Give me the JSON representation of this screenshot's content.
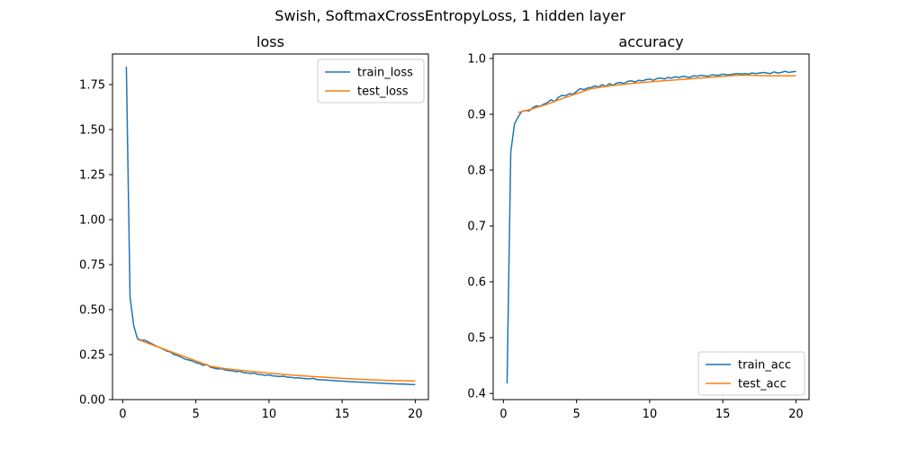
{
  "figure": {
    "suptitle": "Swish, SoftmaxCrossEntropyLoss, 1 hidden layer"
  },
  "chart_data": [
    {
      "type": "line",
      "title": "loss",
      "xlabel": "",
      "ylabel": "",
      "xlim": [
        -0.7,
        20.9
      ],
      "ylim": [
        0.0,
        1.92
      ],
      "xticks": [
        0,
        5,
        10,
        15,
        20
      ],
      "yticks": [
        0.0,
        0.25,
        0.5,
        0.75,
        1.0,
        1.25,
        1.5,
        1.75
      ],
      "ytick_labels": [
        "0.00",
        "0.25",
        "0.50",
        "0.75",
        "1.00",
        "1.25",
        "1.50",
        "1.75"
      ],
      "legend": "top-right",
      "grid": false,
      "series": [
        {
          "name": "train_loss",
          "color": "#1f77b4",
          "x": [
            0.25,
            0.5,
            0.75,
            1.0,
            1.25,
            1.5,
            1.75,
            2.0,
            2.25,
            2.5,
            2.75,
            3.0,
            3.25,
            3.5,
            3.75,
            4.0,
            4.25,
            4.5,
            4.75,
            5.0,
            5.25,
            5.5,
            5.75,
            6.0,
            6.25,
            6.5,
            6.75,
            7.0,
            7.25,
            7.5,
            7.75,
            8.0,
            8.25,
            8.5,
            8.75,
            9.0,
            9.25,
            9.5,
            9.75,
            10.0,
            10.25,
            10.5,
            10.75,
            11.0,
            11.25,
            11.5,
            11.75,
            12.0,
            12.25,
            12.5,
            12.75,
            13.0,
            13.25,
            13.5,
            13.75,
            14.0,
            14.25,
            14.5,
            14.75,
            15.0,
            15.25,
            15.5,
            15.75,
            16.0,
            16.25,
            16.5,
            16.75,
            17.0,
            17.25,
            17.5,
            17.75,
            18.0,
            18.25,
            18.5,
            18.75,
            19.0,
            19.25,
            19.5,
            19.75,
            20.0
          ],
          "y": [
            1.85,
            0.57,
            0.41,
            0.34,
            0.33,
            0.33,
            0.32,
            0.31,
            0.3,
            0.29,
            0.28,
            0.27,
            0.265,
            0.25,
            0.245,
            0.235,
            0.225,
            0.22,
            0.215,
            0.205,
            0.2,
            0.19,
            0.195,
            0.18,
            0.175,
            0.17,
            0.172,
            0.165,
            0.162,
            0.16,
            0.155,
            0.158,
            0.15,
            0.148,
            0.145,
            0.147,
            0.14,
            0.138,
            0.135,
            0.137,
            0.132,
            0.13,
            0.128,
            0.13,
            0.125,
            0.124,
            0.12,
            0.122,
            0.118,
            0.117,
            0.115,
            0.118,
            0.112,
            0.11,
            0.11,
            0.108,
            0.106,
            0.105,
            0.104,
            0.103,
            0.101,
            0.1,
            0.099,
            0.098,
            0.097,
            0.096,
            0.095,
            0.094,
            0.093,
            0.092,
            0.091,
            0.09,
            0.089,
            0.088,
            0.087,
            0.086,
            0.086,
            0.085,
            0.084,
            0.083
          ]
        },
        {
          "name": "test_loss",
          "color": "#ff7f0e",
          "x": [
            1,
            2,
            3,
            4,
            5,
            6,
            7,
            8,
            9,
            10,
            11,
            12,
            13,
            14,
            15,
            16,
            17,
            18,
            19,
            20
          ],
          "y": [
            0.335,
            0.305,
            0.275,
            0.245,
            0.215,
            0.185,
            0.172,
            0.163,
            0.155,
            0.147,
            0.14,
            0.134,
            0.128,
            0.123,
            0.118,
            0.114,
            0.11,
            0.107,
            0.105,
            0.104
          ]
        }
      ]
    },
    {
      "type": "line",
      "title": "accuracy",
      "xlabel": "",
      "ylabel": "",
      "xlim": [
        -0.7,
        20.9
      ],
      "ylim": [
        0.389,
        1.008
      ],
      "xticks": [
        0,
        5,
        10,
        15,
        20
      ],
      "yticks": [
        0.4,
        0.5,
        0.6,
        0.7,
        0.8,
        0.9,
        1.0
      ],
      "ytick_labels": [
        "0.4",
        "0.5",
        "0.6",
        "0.7",
        "0.8",
        "0.9",
        "1.0"
      ],
      "legend": "bottom-right",
      "grid": false,
      "series": [
        {
          "name": "train_acc",
          "color": "#1f77b4",
          "x": [
            0.25,
            0.5,
            0.75,
            1.0,
            1.25,
            1.5,
            1.75,
            2.0,
            2.25,
            2.5,
            2.75,
            3.0,
            3.25,
            3.5,
            3.75,
            4.0,
            4.25,
            4.5,
            4.75,
            5.0,
            5.25,
            5.5,
            5.75,
            6.0,
            6.25,
            6.5,
            6.75,
            7.0,
            7.25,
            7.5,
            7.75,
            8.0,
            8.25,
            8.5,
            8.75,
            9.0,
            9.25,
            9.5,
            9.75,
            10.0,
            10.25,
            10.5,
            10.75,
            11.0,
            11.25,
            11.5,
            11.75,
            12.0,
            12.25,
            12.5,
            12.75,
            13.0,
            13.25,
            13.5,
            13.75,
            14.0,
            14.25,
            14.5,
            14.75,
            15.0,
            15.25,
            15.5,
            15.75,
            16.0,
            16.25,
            16.5,
            16.75,
            17.0,
            17.25,
            17.5,
            17.75,
            18.0,
            18.25,
            18.5,
            18.75,
            19.0,
            19.25,
            19.5,
            19.75,
            20.0
          ],
          "y": [
            0.418,
            0.832,
            0.882,
            0.895,
            0.905,
            0.907,
            0.906,
            0.912,
            0.915,
            0.914,
            0.918,
            0.921,
            0.926,
            0.923,
            0.93,
            0.934,
            0.933,
            0.937,
            0.936,
            0.941,
            0.946,
            0.944,
            0.947,
            0.948,
            0.951,
            0.949,
            0.953,
            0.95,
            0.955,
            0.952,
            0.956,
            0.957,
            0.955,
            0.959,
            0.96,
            0.958,
            0.961,
            0.96,
            0.962,
            0.963,
            0.961,
            0.964,
            0.965,
            0.963,
            0.966,
            0.965,
            0.967,
            0.966,
            0.968,
            0.967,
            0.966,
            0.969,
            0.968,
            0.97,
            0.969,
            0.968,
            0.971,
            0.97,
            0.97,
            0.972,
            0.971,
            0.971,
            0.972,
            0.973,
            0.972,
            0.973,
            0.972,
            0.974,
            0.973,
            0.974,
            0.975,
            0.974,
            0.973,
            0.976,
            0.974,
            0.975,
            0.977,
            0.975,
            0.976,
            0.977
          ]
        },
        {
          "name": "test_acc",
          "color": "#ff7f0e",
          "x": [
            1,
            2,
            3,
            4,
            5,
            6,
            7,
            8,
            9,
            10,
            11,
            12,
            13,
            14,
            15,
            16,
            17,
            18,
            19,
            20
          ],
          "y": [
            0.903,
            0.91,
            0.918,
            0.928,
            0.937,
            0.946,
            0.95,
            0.953,
            0.956,
            0.958,
            0.96,
            0.962,
            0.964,
            0.966,
            0.968,
            0.97,
            0.97,
            0.969,
            0.969,
            0.969
          ]
        }
      ]
    }
  ]
}
